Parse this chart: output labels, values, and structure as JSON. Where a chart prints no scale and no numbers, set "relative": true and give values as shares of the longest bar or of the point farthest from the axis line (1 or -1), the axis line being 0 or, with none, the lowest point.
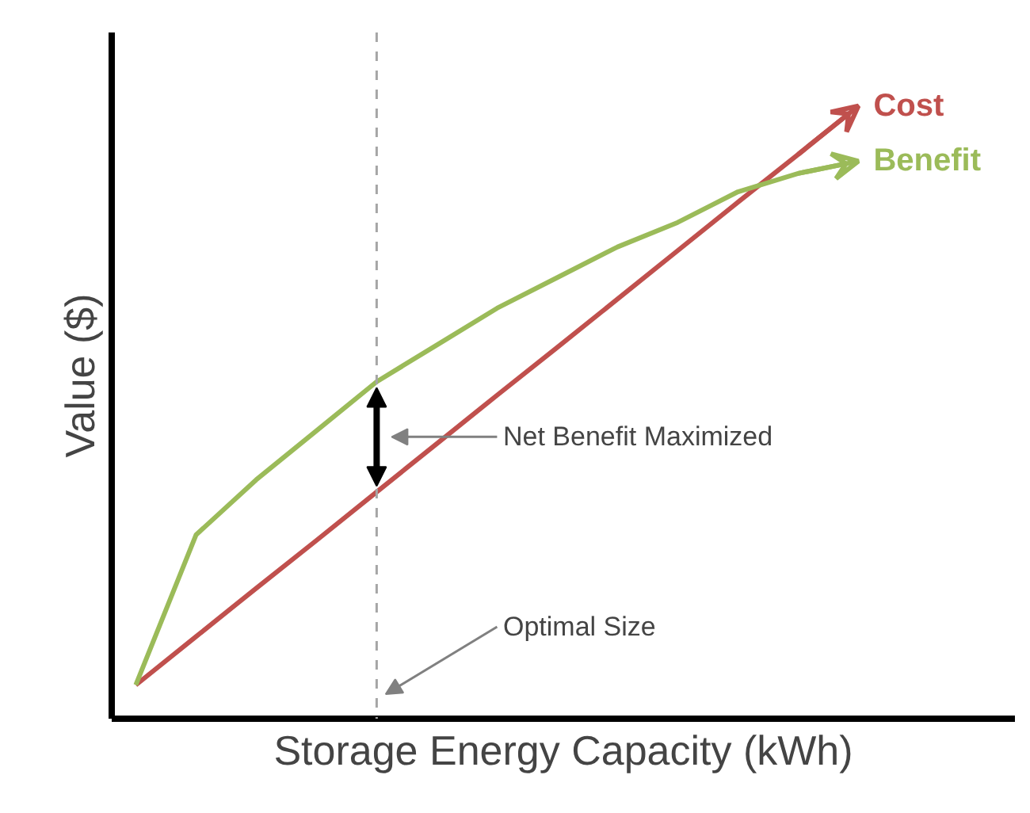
{
  "chart_data": {
    "type": "line",
    "relative": true,
    "xlabel": "Storage Energy Capacity (kWh)",
    "ylabel": "Value ($)",
    "categories": [
      null,
      null,
      null,
      null,
      null,
      null,
      null,
      null,
      null,
      null,
      null,
      null,
      null
    ],
    "series": [
      {
        "name": "Cost",
        "color": "#c0504d",
        "values": [
          0.055,
          0.134,
          0.213,
          0.291,
          0.37,
          0.449,
          0.528,
          0.606,
          0.685,
          0.764,
          0.843,
          0.921,
          1.0
        ]
      },
      {
        "name": "Benefit",
        "color": "#9bbb59",
        "values": [
          0.055,
          0.3,
          0.39,
          0.47,
          0.55,
          0.61,
          0.67,
          0.72,
          0.77,
          0.81,
          0.86,
          0.89,
          0.91
        ]
      }
    ],
    "annotations": [
      "Net Benefit Maximized",
      "Optimal Size"
    ],
    "legend": "top right",
    "marker": "none",
    "line_style": "solid"
  }
}
